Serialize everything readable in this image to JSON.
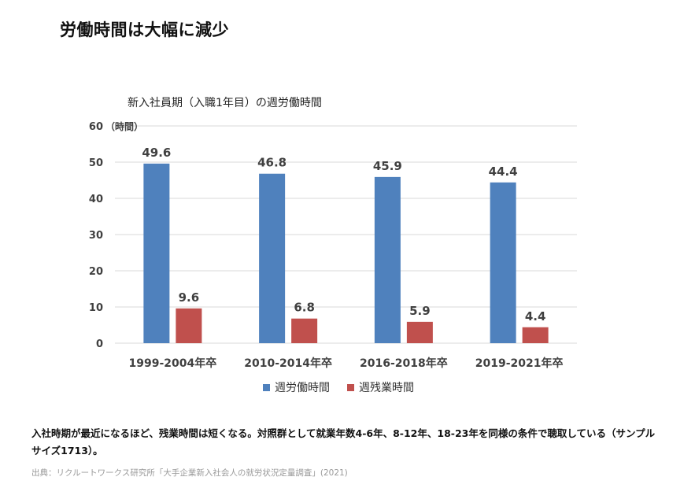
{
  "headline": "労働時間は大幅に減少",
  "note": "入社時期が最近になるほど、残業時間は短くなる。対照群として就業年数4-6年、8-12年、18-23年を同様の条件で聴取している（サンプルサイズ1713）。",
  "source": "出典：リクルートワークス研究所「大手企業新入社会人の就労状況定量調査」(2021)",
  "chart_data": {
    "type": "bar",
    "title": "新入社員期（入職1年目）の週労働時間",
    "ylabel": "（時間）",
    "ylim": [
      0,
      60
    ],
    "yticks": [
      0,
      10,
      20,
      30,
      40,
      50,
      60
    ],
    "grid": true,
    "legend_position": "bottom",
    "categories": [
      "1999-2004年卒",
      "2010-2014年卒",
      "2016-2018年卒",
      "2019-2021年卒"
    ],
    "series": [
      {
        "name": "週労働時間",
        "color": "#4f81bd",
        "values": [
          49.6,
          46.8,
          45.9,
          44.4
        ]
      },
      {
        "name": "週残業時間",
        "color": "#c0504d",
        "values": [
          9.6,
          6.8,
          5.9,
          4.4
        ]
      }
    ]
  }
}
